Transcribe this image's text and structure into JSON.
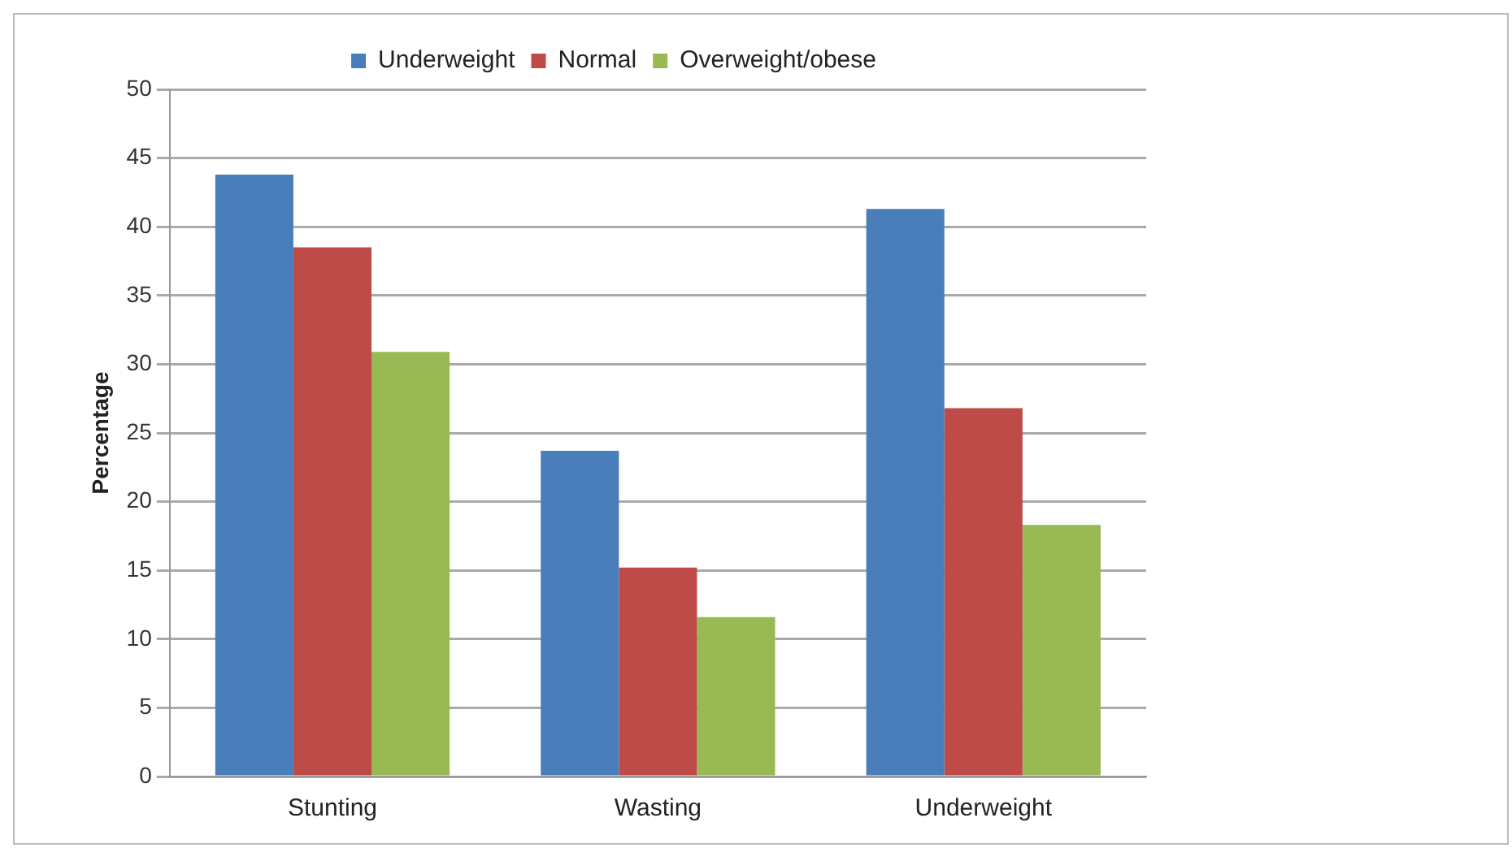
{
  "chart_data": {
    "type": "bar",
    "ylabel": "Percentage",
    "categories": [
      "Stunting",
      "Wasting",
      "Underweight"
    ],
    "series": [
      {
        "name": "Underweight",
        "color": "#4a7ebb",
        "values": [
          43.8,
          23.7,
          41.3
        ]
      },
      {
        "name": "Normal",
        "color": "#be4b48",
        "values": [
          38.5,
          15.2,
          26.8
        ]
      },
      {
        "name": "Overweight/obese",
        "color": "#98b954",
        "values": [
          30.9,
          11.6,
          18.3
        ]
      }
    ],
    "ylim": [
      0,
      50
    ],
    "yticks": [
      0,
      5,
      10,
      15,
      20,
      25,
      30,
      35,
      40,
      45,
      50
    ],
    "grid": "y",
    "legend": "top"
  }
}
